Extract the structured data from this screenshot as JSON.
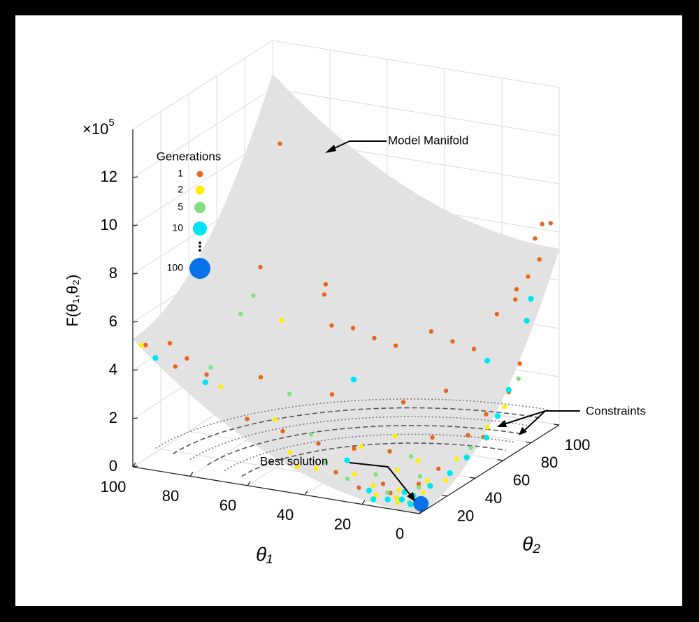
{
  "chart_data": {
    "type": "scatter3d",
    "xlabel": "θ₁",
    "ylabel": "θ₂",
    "zlabel": "F(θ₁,θ₂)",
    "z_multiplier": "×10",
    "z_multiplier_exponent": "5",
    "xlim": [
      0,
      100
    ],
    "ylim": [
      0,
      100
    ],
    "zlim": [
      0,
      14
    ],
    "xticks": [
      0,
      20,
      40,
      60,
      80,
      100
    ],
    "yticks": [
      20,
      40,
      60,
      80,
      100
    ],
    "zticks": [
      0,
      2,
      4,
      6,
      8,
      10,
      12
    ],
    "grid": true,
    "legend_title": "Generations",
    "legend_ellipsis": "⋮",
    "surface_color": "#e2e2e2",
    "annotations": [
      "Model Manifold",
      "Constraints",
      "Best solution"
    ],
    "series": [
      {
        "name": "1",
        "color": "#e8661a",
        "x": [
          97,
          90,
          86,
          92,
          84,
          95,
          75,
          60,
          62,
          55,
          50,
          45,
          40,
          30,
          25,
          20,
          10,
          6,
          4,
          3,
          2,
          8,
          5,
          12,
          4,
          3,
          6,
          2,
          15,
          25,
          35,
          45,
          55,
          65,
          70,
          50,
          30,
          20,
          10,
          15,
          20,
          8,
          25,
          35,
          5
        ],
        "y": [
          3,
          6,
          10,
          14,
          20,
          95,
          40,
          55,
          60,
          50,
          55,
          60,
          65,
          70,
          75,
          80,
          90,
          95,
          96,
          92,
          98,
          85,
          88,
          80,
          80,
          70,
          60,
          50,
          40,
          30,
          25,
          20,
          15,
          10,
          30,
          40,
          50,
          60,
          20,
          10,
          15,
          30,
          8,
          12,
          45
        ],
        "values": [
          5.0,
          5.1,
          4.4,
          3.8,
          3.4,
          10.0,
          7.3,
          5.9,
          6.1,
          4.9,
          4.7,
          4.2,
          3.8,
          4.4,
          3.9,
          3.5,
          5.8,
          7.8,
          8.4,
          7.1,
          8.4,
          5.6,
          6.5,
          5.1,
          3.2,
          2.4,
          1.8,
          1.3,
          1.4,
          1.0,
          1.1,
          1.3,
          1.8,
          2.3,
          3.2,
          2.5,
          2.2,
          2.5,
          0.3,
          0.2,
          0.3,
          0.6,
          0.3,
          0.6,
          1.5
        ]
      },
      {
        "name": "2",
        "color": "#ffee00",
        "x": [
          98,
          80,
          70,
          10,
          12,
          18,
          22,
          6,
          8,
          30,
          40,
          15,
          4,
          3,
          50,
          60,
          28,
          14,
          5,
          3,
          2,
          20,
          35,
          45
        ],
        "y": [
          2,
          22,
          45,
          5,
          8,
          6,
          12,
          15,
          22,
          15,
          8,
          30,
          35,
          55,
          10,
          20,
          40,
          14,
          10,
          25,
          65,
          25,
          30,
          5
        ],
        "values": [
          5.0,
          2.9,
          5.0,
          0.1,
          0.15,
          0.2,
          0.3,
          0.2,
          0.4,
          0.5,
          0.8,
          0.8,
          0.9,
          1.5,
          1.2,
          2.0,
          1.2,
          0.2,
          0.1,
          0.4,
          2.0,
          0.5,
          1.0,
          0.9
        ]
      },
      {
        "name": "5",
        "color": "#7ee07e",
        "x": [
          75,
          78,
          60,
          85,
          25,
          16,
          9,
          30,
          7,
          12,
          40,
          4,
          2,
          20,
          50
        ],
        "y": [
          35,
          32,
          30,
          25,
          20,
          10,
          18,
          10,
          7,
          25,
          15,
          45,
          75,
          35,
          25
        ],
        "values": [
          6.3,
          5.6,
          2.7,
          3.5,
          0.4,
          0.2,
          0.25,
          0.5,
          0.08,
          0.4,
          0.8,
          1.0,
          2.8,
          0.7,
          1.4
        ]
      },
      {
        "name": "10",
        "color": "#00e5f0",
        "x": [
          96,
          82,
          5,
          4,
          3,
          2,
          2,
          3,
          4,
          6,
          8,
          10,
          14,
          18,
          6,
          12,
          22,
          35,
          40,
          8,
          3
        ],
        "y": [
          8,
          15,
          90,
          85,
          70,
          60,
          52,
          40,
          30,
          20,
          12,
          8,
          6,
          4,
          6,
          14,
          9,
          20,
          35,
          65,
          8
        ],
        "values": [
          4.3,
          3.3,
          5.5,
          4.8,
          2.5,
          1.8,
          1.2,
          0.8,
          0.5,
          0.3,
          0.15,
          0.1,
          0.1,
          0.1,
          0.05,
          0.15,
          0.2,
          0.8,
          3.5,
          3.8,
          0.04
        ]
      },
      {
        "name": "100",
        "color": "#0a72e8",
        "x": [
          3.5
        ],
        "y": [
          8.3
        ],
        "values": [
          0.04
        ]
      }
    ]
  }
}
